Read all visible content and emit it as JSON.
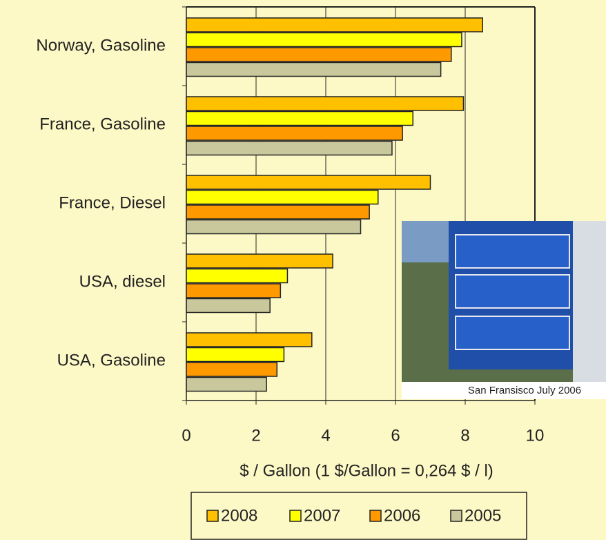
{
  "chart_data": {
    "type": "hbar",
    "categories": [
      "Norway, Gasoline",
      "France, Gasoline",
      "France, Diesel",
      "USA, diesel",
      "USA, Gasoline"
    ],
    "series": [
      {
        "name": "2008",
        "color": "#ffc000",
        "values": [
          8.5,
          7.95,
          7.0,
          4.2,
          3.6
        ]
      },
      {
        "name": "2007",
        "color": "#ffff00",
        "values": [
          7.9,
          6.5,
          5.5,
          2.9,
          2.8
        ]
      },
      {
        "name": "2006",
        "color": "#ff9900",
        "values": [
          7.6,
          6.2,
          5.25,
          2.7,
          2.6
        ]
      },
      {
        "name": "2005",
        "color": "#c8c89c",
        "values": [
          7.3,
          5.9,
          5.0,
          2.4,
          2.3
        ]
      }
    ],
    "x_label": "$ / Gallon (1 $/Gallon = 0,264 $ / l)",
    "xlim": [
      0,
      10
    ],
    "xticks": [
      0,
      2,
      4,
      6,
      8,
      10
    ],
    "grid": true,
    "legend": "bottom",
    "photo_caption": "San Fransisco  July 2006"
  }
}
